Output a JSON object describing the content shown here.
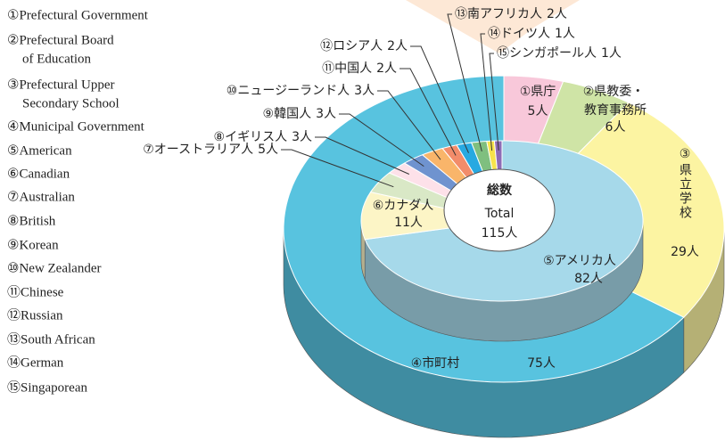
{
  "chart_data": {
    "type": "donut3d",
    "legend": [
      [
        "①Prefectural Government"
      ],
      [
        "②Prefectural Board",
        "of Education"
      ],
      [
        "③Prefectural Upper",
        "Secondary School"
      ],
      [
        "④Municipal Government"
      ],
      [
        "⑤American"
      ],
      [
        "⑥Canadian"
      ],
      [
        "⑦Australian"
      ],
      [
        "⑧British"
      ],
      [
        "⑨Korean"
      ],
      [
        "⑩New Zealander"
      ],
      [
        "⑪Chinese"
      ],
      [
        "⑫Russian"
      ],
      [
        "⑬South African"
      ],
      [
        "⑭German"
      ],
      [
        "⑮Singaporean"
      ]
    ],
    "outer": {
      "categories": [
        "①県庁",
        [
          "②県教委・",
          "教育事務所"
        ],
        "③県立学校",
        "④市町村"
      ],
      "values": [
        5,
        6,
        29,
        75
      ],
      "value_labels": [
        "5人",
        "6人",
        "29人",
        "75人"
      ],
      "colors": [
        "#f8c8da",
        "#cfe4a6",
        "#fcf4a2",
        "#58c3df"
      ]
    },
    "inner": {
      "categories": [
        "⑤アメリカ人",
        "⑥カナダ人",
        "⑦オーストラリア人",
        "⑧イギリス人",
        "⑨韓国人",
        "⑩ニュージーランド人",
        "⑪中国人",
        "⑫ロシア人",
        "⑬南アフリカ人",
        "⑭ドイツ人",
        "⑮シンガポール人"
      ],
      "values": [
        82,
        11,
        5,
        3,
        3,
        3,
        2,
        2,
        2,
        1,
        1
      ],
      "value_labels": [
        "82人",
        "11人",
        "5人",
        "3人",
        "3人",
        "3人",
        "2人",
        "2人",
        "2人",
        "1人",
        "1人"
      ],
      "colors": [
        "#a6d9ea",
        "#fcf5c6",
        "#d9e8c6",
        "#fde1e9",
        "#6f93cf",
        "#f9b56a",
        "#f28c6a",
        "#27a9e1",
        "#7fbf7f",
        "#f7e34b",
        "#8e6bb5"
      ]
    },
    "center": {
      "title": "総数",
      "subtitle": "Total",
      "value": 115,
      "value_label": "115人"
    }
  }
}
